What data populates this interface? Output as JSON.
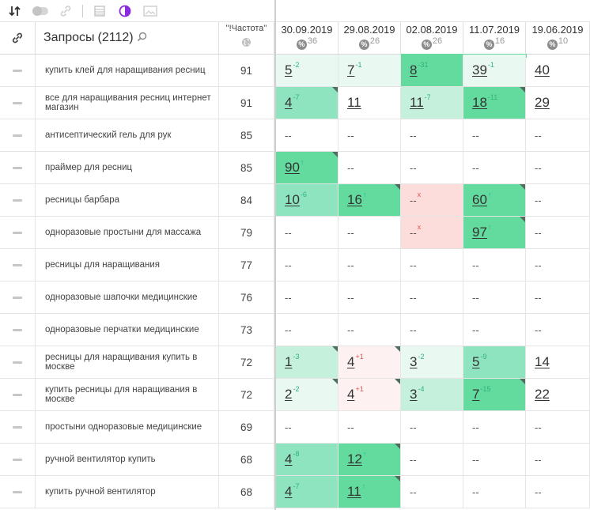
{
  "toolbar": {
    "icons": [
      "sort-icon",
      "toggle-icon",
      "link-icon",
      "table-icon",
      "contrast-icon",
      "image-icon"
    ]
  },
  "header": {
    "query_label": "Запросы",
    "query_count": "(2112)",
    "freq_label": "\"!Частота\"",
    "dates": [
      {
        "date": "30.09.2019",
        "count": "36"
      },
      {
        "date": "29.08.2019",
        "count": "26"
      },
      {
        "date": "02.08.2019",
        "count": "26"
      },
      {
        "date": "11.07.2019",
        "count": "16"
      },
      {
        "date": "19.06.2019",
        "count": "10"
      }
    ]
  },
  "rows": [
    {
      "query": "купить клей для наращивания ресниц",
      "freq": "91",
      "pos": [
        {
          "v": "5",
          "d": "-2",
          "dir": "up",
          "bg": "g1",
          "corner": false
        },
        {
          "v": "7",
          "d": "-1",
          "dir": "up",
          "bg": "g1",
          "corner": false
        },
        {
          "v": "8",
          "d": "-31",
          "dir": "up",
          "bg": "g4",
          "corner": false
        },
        {
          "v": "39",
          "d": "-1",
          "dir": "up",
          "bg": "g1",
          "corner": false
        },
        {
          "v": "40",
          "d": "",
          "dir": "",
          "bg": "",
          "corner": false
        }
      ]
    },
    {
      "query": "все для наращивания ресниц интернет магазин",
      "freq": "91",
      "pos": [
        {
          "v": "4",
          "d": "-7",
          "dir": "up",
          "bg": "g3",
          "corner": true
        },
        {
          "v": "11",
          "d": "",
          "dir": "",
          "bg": "",
          "corner": false
        },
        {
          "v": "11",
          "d": "-7",
          "dir": "up",
          "bg": "g2",
          "corner": false
        },
        {
          "v": "18",
          "d": "-11",
          "dir": "up",
          "bg": "g4",
          "corner": true
        },
        {
          "v": "29",
          "d": "",
          "dir": "",
          "bg": "",
          "corner": false
        }
      ]
    },
    {
      "query": "антисептический гель для рук",
      "freq": "85",
      "pos": [
        {
          "v": "--"
        },
        {
          "v": "--"
        },
        {
          "v": "--"
        },
        {
          "v": "--"
        },
        {
          "v": "--"
        }
      ]
    },
    {
      "query": "праймер для ресниц",
      "freq": "85",
      "pos": [
        {
          "v": "90",
          "d": "↑",
          "dir": "up",
          "bg": "g4",
          "corner": true
        },
        {
          "v": "--"
        },
        {
          "v": "--"
        },
        {
          "v": "--"
        },
        {
          "v": "--"
        }
      ]
    },
    {
      "query": "ресницы барбара",
      "freq": "84",
      "pos": [
        {
          "v": "10",
          "d": "-6",
          "dir": "up",
          "bg": "g3",
          "corner": false
        },
        {
          "v": "16",
          "d": "↑",
          "dir": "up",
          "bg": "g4",
          "corner": true
        },
        {
          "v": "--",
          "d": "x",
          "dir": "down",
          "bg": "r2",
          "corner": false
        },
        {
          "v": "60",
          "d": "↑",
          "dir": "up",
          "bg": "g4",
          "corner": true
        },
        {
          "v": "--"
        }
      ]
    },
    {
      "query": "одноразовые простыни для массажа",
      "freq": "79",
      "pos": [
        {
          "v": "--"
        },
        {
          "v": "--"
        },
        {
          "v": "--",
          "d": "x",
          "dir": "down",
          "bg": "r2",
          "corner": false
        },
        {
          "v": "97",
          "d": "↑",
          "dir": "up",
          "bg": "g4",
          "corner": true
        },
        {
          "v": "--"
        }
      ]
    },
    {
      "query": "ресницы для наращивания",
      "freq": "77",
      "pos": [
        {
          "v": "--"
        },
        {
          "v": "--"
        },
        {
          "v": "--"
        },
        {
          "v": "--"
        },
        {
          "v": "--"
        }
      ]
    },
    {
      "query": "одноразовые шапочки медицинские",
      "freq": "76",
      "pos": [
        {
          "v": "--"
        },
        {
          "v": "--"
        },
        {
          "v": "--"
        },
        {
          "v": "--"
        },
        {
          "v": "--"
        }
      ]
    },
    {
      "query": "одноразовые перчатки медицинские",
      "freq": "73",
      "pos": [
        {
          "v": "--"
        },
        {
          "v": "--"
        },
        {
          "v": "--"
        },
        {
          "v": "--"
        },
        {
          "v": "--"
        }
      ]
    },
    {
      "query": "ресницы для наращивания купить в москве",
      "freq": "72",
      "pos": [
        {
          "v": "1",
          "d": "-3",
          "dir": "up",
          "bg": "g2",
          "corner": true
        },
        {
          "v": "4",
          "d": "+1",
          "dir": "down",
          "bg": "r1",
          "corner": true
        },
        {
          "v": "3",
          "d": "-2",
          "dir": "up",
          "bg": "g1",
          "corner": false
        },
        {
          "v": "5",
          "d": "-9",
          "dir": "up",
          "bg": "g3",
          "corner": false
        },
        {
          "v": "14",
          "d": "",
          "dir": "",
          "bg": "",
          "corner": false
        }
      ]
    },
    {
      "query": "купить ресницы для наращивания в москве",
      "freq": "72",
      "pos": [
        {
          "v": "2",
          "d": "-2",
          "dir": "up",
          "bg": "g1",
          "corner": true
        },
        {
          "v": "4",
          "d": "+1",
          "dir": "down",
          "bg": "r1",
          "corner": true
        },
        {
          "v": "3",
          "d": "-4",
          "dir": "up",
          "bg": "g2",
          "corner": false
        },
        {
          "v": "7",
          "d": "-15",
          "dir": "up",
          "bg": "g4",
          "corner": true
        },
        {
          "v": "22",
          "d": "",
          "dir": "",
          "bg": "",
          "corner": false
        }
      ]
    },
    {
      "query": "простыни одноразовые медицинские",
      "freq": "69",
      "pos": [
        {
          "v": "--"
        },
        {
          "v": "--"
        },
        {
          "v": "--"
        },
        {
          "v": "--"
        },
        {
          "v": "--"
        }
      ]
    },
    {
      "query": "ручной вентилятор купить",
      "freq": "68",
      "pos": [
        {
          "v": "4",
          "d": "-8",
          "dir": "up",
          "bg": "g3",
          "corner": false
        },
        {
          "v": "12",
          "d": "↑",
          "dir": "up",
          "bg": "g4",
          "corner": true
        },
        {
          "v": "--"
        },
        {
          "v": "--"
        },
        {
          "v": "--"
        }
      ]
    },
    {
      "query": "купить ручной вентилятор",
      "freq": "68",
      "pos": [
        {
          "v": "4",
          "d": "-7",
          "dir": "up",
          "bg": "g3",
          "corner": false
        },
        {
          "v": "11",
          "d": "↑",
          "dir": "up",
          "bg": "g4",
          "corner": true
        },
        {
          "v": "--"
        },
        {
          "v": "--"
        },
        {
          "v": "--"
        }
      ]
    }
  ],
  "top_strip_color": "#63db9f"
}
